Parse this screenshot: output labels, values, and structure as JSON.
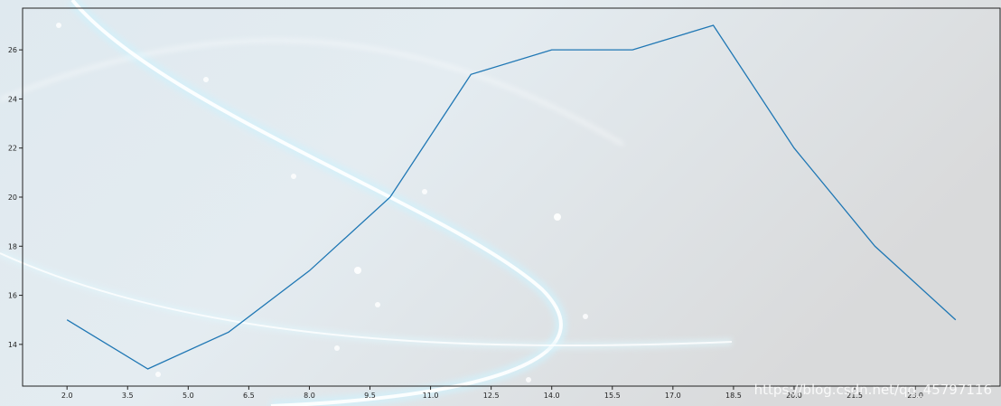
{
  "chart_data": {
    "type": "line",
    "x": [
      2,
      4,
      6,
      8,
      10,
      12,
      14,
      16,
      18,
      20,
      22,
      24
    ],
    "series": [
      {
        "values": [
          15,
          13,
          14.5,
          17,
          20,
          25,
          26,
          26,
          27,
          22,
          18,
          15
        ],
        "color": "#1f77b4"
      }
    ],
    "xticks": [
      "2.0",
      "3.5",
      "5.0",
      "6.5",
      "8.0",
      "9.5",
      "11.0",
      "12.5",
      "14.0",
      "15.5",
      "17.0",
      "18.5",
      "20.0",
      "21.5",
      "23.0"
    ],
    "yticks": [
      "14",
      "16",
      "18",
      "20",
      "22",
      "24",
      "26"
    ],
    "xlim": [
      0.9,
      25.1
    ],
    "ylim": [
      12.3,
      27.7
    ],
    "grid": false,
    "title": "",
    "xlabel": "",
    "ylabel": ""
  },
  "watermark": "https://blog.csdn.net/qq_45797116"
}
